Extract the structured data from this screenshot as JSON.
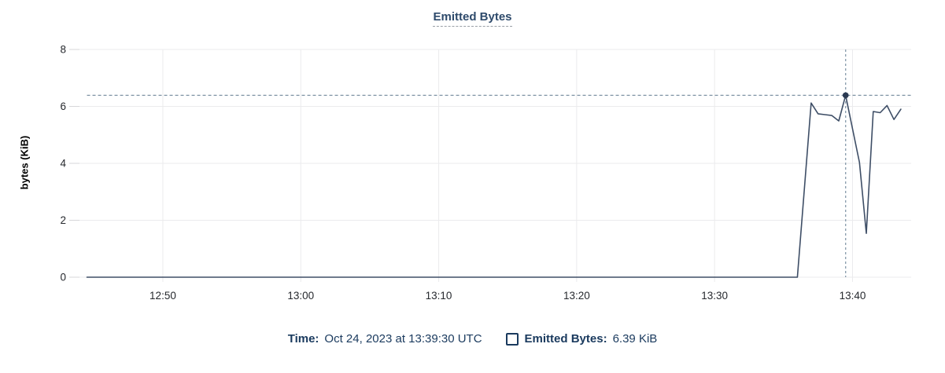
{
  "title": "Emitted Bytes",
  "y_axis_title": "bytes (KiB)",
  "legend": {
    "time_label": "Time:",
    "time_value": "Oct 24, 2023 at 13:39:30 UTC",
    "series_label": "Emitted Bytes:",
    "series_value": "6.39 KiB"
  },
  "colors": {
    "line": "#3e4e66",
    "marker": "#2b3a52",
    "crosshair": "#7e93a4",
    "grid": "#ebebed",
    "axis_tick": "#d7d7da",
    "tick_text": "#26292e"
  },
  "chart_data": {
    "type": "line",
    "title": "Emitted Bytes",
    "xlabel": "",
    "ylabel": "bytes (KiB)",
    "legend_position": "bottom",
    "grid": true,
    "ylim": [
      0,
      8
    ],
    "y_ticks": [
      0,
      2,
      4,
      6,
      8
    ],
    "x_ticks": [
      "12:50",
      "13:00",
      "13:10",
      "13:20",
      "13:30",
      "13:40"
    ],
    "x_range": [
      "12:43:30",
      "13:44:15"
    ],
    "series": [
      {
        "name": "Emitted Bytes",
        "unit": "KiB",
        "points": [
          [
            "12:44:30",
            0
          ],
          [
            "13:36:00",
            0
          ],
          [
            "13:37:00",
            6.12
          ],
          [
            "13:37:30",
            5.74
          ],
          [
            "13:38:00",
            5.71
          ],
          [
            "13:38:30",
            5.68
          ],
          [
            "13:39:00",
            5.49
          ],
          [
            "13:39:30",
            6.39
          ],
          [
            "13:40:30",
            4.03
          ],
          [
            "13:41:00",
            1.54
          ],
          [
            "13:41:30",
            5.82
          ],
          [
            "13:42:00",
            5.78
          ],
          [
            "13:42:30",
            6.03
          ],
          [
            "13:43:00",
            5.54
          ],
          [
            "13:43:30",
            5.9
          ]
        ]
      }
    ],
    "hover": {
      "time": "13:39:30",
      "value": 6.39,
      "time_label": "Oct 24, 2023 at 13:39:30 UTC",
      "value_label": "6.39 KiB"
    }
  }
}
